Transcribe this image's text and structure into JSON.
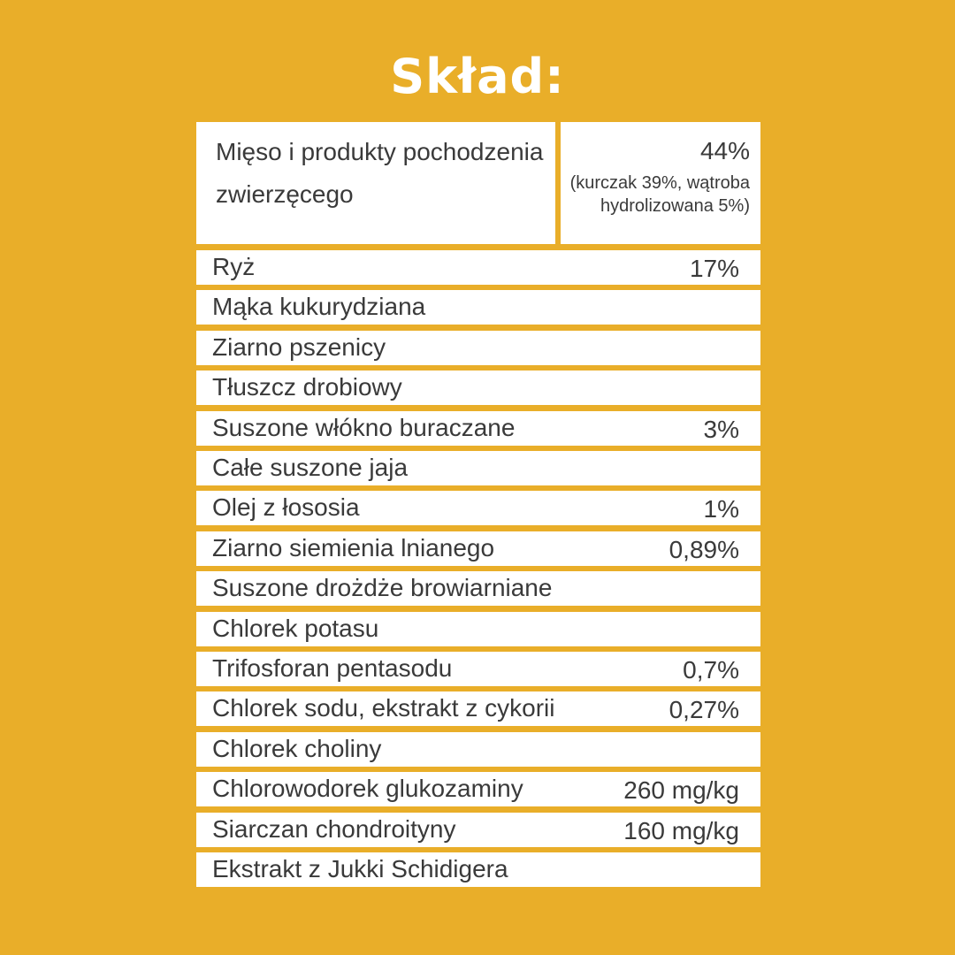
{
  "title": "Skład:",
  "top": {
    "name_line1": "Mięso i produkty pochodzenia",
    "name_line2": "zwierzęcego",
    "value": "44%",
    "note_line1": "(kurczak 39%, wątroba",
    "note_line2": "hydrolizowana 5%)"
  },
  "rows": [
    {
      "name": "Ryż",
      "value": "17%"
    },
    {
      "name": "Mąka kukurydziana",
      "value": ""
    },
    {
      "name": "Ziarno pszenicy",
      "value": ""
    },
    {
      "name": "Tłuszcz drobiowy",
      "value": ""
    },
    {
      "name": "Suszone włókno buraczane",
      "value": "3%"
    },
    {
      "name": "Całe suszone jaja",
      "value": ""
    },
    {
      "name": "Olej z łososia",
      "value": "1%"
    },
    {
      "name": "Ziarno siemienia lnianego",
      "value": "0,89%"
    },
    {
      "name": "Suszone drożdże browiarniane",
      "value": ""
    },
    {
      "name": "Chlorek potasu",
      "value": ""
    },
    {
      "name": "Trifosforan pentasodu",
      "value": "0,7%"
    },
    {
      "name": "Chlorek sodu, ekstrakt z cykorii",
      "value": "0,27%"
    },
    {
      "name": "Chlorek choliny",
      "value": ""
    },
    {
      "name": "Chlorowodorek glukozaminy",
      "value": "260 mg/kg"
    },
    {
      "name": "Siarczan chondroityny",
      "value": "160 mg/kg"
    },
    {
      "name": "Ekstrakt z Jukki Schidigera",
      "value": ""
    }
  ],
  "colors": {
    "background": "#E9AE29",
    "cell": "#FFFFFF",
    "text": "#3A3A3A",
    "title": "#FFFFFF"
  }
}
